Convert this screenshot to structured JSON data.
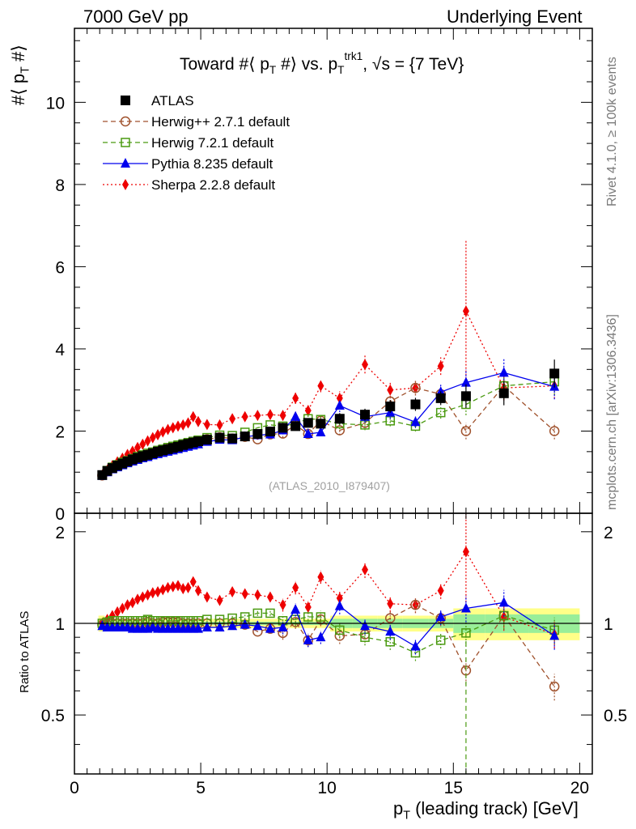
{
  "header": {
    "left": "7000 GeV pp",
    "right": "Underlying Event"
  },
  "side_texts": {
    "rivet": "Rivet 4.1.0, ≥ 100k events",
    "mcplots": "mcplots.cern.ch [arXiv:1306.3436]"
  },
  "chart_data": {
    "type": "scatter",
    "title": "Toward #⟨ p_T #⟩ vs. p_T^trk1, √s = {7 TeV}",
    "title_parts": {
      "a": "Toward #⟨ p",
      "b": "T",
      "c": " #⟩ vs. p",
      "d": "T",
      "e": "trk1",
      "f": ", √s = {7 TeV}"
    },
    "ylabel_parts": {
      "a": "#⟨ p",
      "b": "T",
      "c": " #⟩"
    },
    "xlabel_parts": {
      "a": "p",
      "b": "T",
      "c": " (leading track) [GeV]"
    },
    "ratio_ylabel": "Ratio to ATLAS",
    "analysis_tag": "(ATLAS_2010_I879407)",
    "xlim": [
      0,
      20.5
    ],
    "ylim": [
      0,
      11.8
    ],
    "ratio_ylim": [
      0.32,
      2.3
    ],
    "x_ticks": [
      0,
      5,
      10,
      15,
      20
    ],
    "y_ticks": [
      0,
      2,
      4,
      6,
      8,
      10
    ],
    "ratio_ticks": [
      0.5,
      1,
      2
    ],
    "x": [
      1.1,
      1.3,
      1.5,
      1.7,
      1.9,
      2.1,
      2.3,
      2.5,
      2.7,
      2.9,
      3.1,
      3.3,
      3.5,
      3.7,
      3.9,
      4.1,
      4.3,
      4.5,
      4.7,
      4.9,
      5.25,
      5.75,
      6.25,
      6.75,
      7.25,
      7.75,
      8.25,
      8.75,
      9.25,
      9.75,
      10.5,
      11.5,
      12.5,
      13.5,
      14.5,
      15.5,
      17.0,
      19.0
    ],
    "series": [
      {
        "name": "ATLAS",
        "color": "#000000",
        "marker": "square",
        "values": [
          0.93,
          1.03,
          1.1,
          1.16,
          1.21,
          1.26,
          1.31,
          1.35,
          1.39,
          1.42,
          1.46,
          1.5,
          1.53,
          1.56,
          1.59,
          1.62,
          1.66,
          1.69,
          1.72,
          1.75,
          1.79,
          1.84,
          1.82,
          1.87,
          1.93,
          1.99,
          2.08,
          2.12,
          2.2,
          2.18,
          2.3,
          2.4,
          2.6,
          2.65,
          2.8,
          2.85,
          2.92,
          3.4
        ],
        "ratio": [
          1.0,
          1.0,
          1.0,
          1.0,
          1.0,
          1.0,
          1.0,
          1.0,
          1.0,
          1.0,
          1.0,
          1.0,
          1.0,
          1.0,
          1.0,
          1.0,
          1.0,
          1.0,
          1.0,
          1.0,
          1.0,
          1.0,
          1.0,
          1.0,
          1.0,
          1.0,
          1.0,
          1.0,
          1.0,
          1.0,
          1.0,
          1.0,
          1.0,
          1.0,
          1.0,
          1.0,
          1.0,
          1.0
        ]
      },
      {
        "name": "Herwig++ 2.7.1 default",
        "color": "#a0522d",
        "marker": "open-circle",
        "dash": "6,4",
        "values": [
          0.92,
          1.02,
          1.1,
          1.16,
          1.21,
          1.26,
          1.31,
          1.35,
          1.39,
          1.43,
          1.46,
          1.5,
          1.54,
          1.57,
          1.6,
          1.63,
          1.66,
          1.69,
          1.72,
          1.75,
          1.8,
          1.85,
          1.82,
          1.86,
          1.8,
          1.92,
          1.94,
          2.15,
          1.93,
          2.25,
          2.02,
          2.2,
          2.72,
          3.05,
          2.9,
          2.0,
          3.1,
          2.0
        ],
        "ratio": [
          0.99,
          0.99,
          1.0,
          1.0,
          1.0,
          1.0,
          1.0,
          1.0,
          1.0,
          1.01,
          1.0,
          1.0,
          1.01,
          1.01,
          1.01,
          1.01,
          1.0,
          1.0,
          1.0,
          1.0,
          1.0,
          1.0,
          1.0,
          0.99,
          0.94,
          0.96,
          0.93,
          1.01,
          0.88,
          1.03,
          0.91,
          0.92,
          1.04,
          1.15,
          1.04,
          0.7,
          1.06,
          0.62
        ]
      },
      {
        "name": "Herwig 7.2.1 default",
        "color": "#4a9a10",
        "marker": "open-square",
        "dash": "6,4",
        "values": [
          0.93,
          1.04,
          1.12,
          1.18,
          1.24,
          1.28,
          1.33,
          1.38,
          1.42,
          1.46,
          1.49,
          1.53,
          1.56,
          1.6,
          1.63,
          1.66,
          1.69,
          1.72,
          1.75,
          1.78,
          1.84,
          1.9,
          1.89,
          1.97,
          2.08,
          2.15,
          2.12,
          2.18,
          2.3,
          2.28,
          2.18,
          2.15,
          2.25,
          2.12,
          2.45,
          2.65,
          3.1,
          3.2
        ],
        "ratio": [
          1.0,
          1.01,
          1.02,
          1.02,
          1.02,
          1.02,
          1.02,
          1.02,
          1.02,
          1.03,
          1.02,
          1.02,
          1.02,
          1.02,
          1.02,
          1.02,
          1.02,
          1.02,
          1.02,
          1.02,
          1.03,
          1.03,
          1.04,
          1.05,
          1.08,
          1.08,
          1.02,
          1.03,
          1.05,
          1.05,
          0.95,
          0.9,
          0.87,
          0.8,
          0.88,
          0.93,
          1.06,
          0.95
        ]
      },
      {
        "name": "Pythia 8.235 default",
        "color": "#0000ee",
        "marker": "triangle",
        "dash": "",
        "values": [
          0.91,
          1.0,
          1.07,
          1.12,
          1.17,
          1.22,
          1.26,
          1.3,
          1.34,
          1.37,
          1.41,
          1.44,
          1.47,
          1.5,
          1.53,
          1.56,
          1.59,
          1.62,
          1.65,
          1.68,
          1.74,
          1.79,
          1.78,
          1.86,
          1.9,
          1.92,
          2.02,
          2.35,
          1.93,
          1.97,
          2.62,
          2.35,
          2.45,
          2.22,
          2.95,
          3.18,
          3.42,
          3.08
        ],
        "ratio": [
          0.98,
          0.97,
          0.97,
          0.97,
          0.97,
          0.97,
          0.96,
          0.96,
          0.96,
          0.96,
          0.97,
          0.96,
          0.96,
          0.96,
          0.96,
          0.96,
          0.96,
          0.96,
          0.96,
          0.96,
          0.97,
          0.97,
          0.98,
          0.99,
          0.98,
          0.96,
          0.97,
          1.11,
          0.88,
          0.9,
          1.14,
          0.98,
          0.94,
          0.84,
          1.05,
          1.12,
          1.17,
          0.91
        ]
      },
      {
        "name": "Sherpa 2.2.8 default",
        "color": "#ee0000",
        "marker": "diamond",
        "dash": "2,3",
        "values": [
          0.93,
          1.05,
          1.16,
          1.25,
          1.34,
          1.43,
          1.51,
          1.6,
          1.68,
          1.76,
          1.84,
          1.91,
          1.98,
          2.04,
          2.08,
          2.12,
          2.15,
          2.2,
          2.35,
          2.23,
          2.16,
          2.15,
          2.3,
          2.35,
          2.38,
          2.4,
          2.38,
          2.8,
          2.5,
          3.1,
          2.8,
          3.62,
          3.0,
          3.05,
          3.58,
          4.92,
          3.05,
          3.1
        ],
        "ratio": [
          1.0,
          1.03,
          1.06,
          1.09,
          1.12,
          1.15,
          1.17,
          1.2,
          1.22,
          1.24,
          1.26,
          1.27,
          1.29,
          1.31,
          1.32,
          1.33,
          1.3,
          1.31,
          1.37,
          1.28,
          1.22,
          1.19,
          1.27,
          1.25,
          1.24,
          1.22,
          1.15,
          1.31,
          1.13,
          1.42,
          1.21,
          1.5,
          1.16,
          1.15,
          1.28,
          1.72,
          1.05,
          0.92
        ]
      }
    ]
  }
}
